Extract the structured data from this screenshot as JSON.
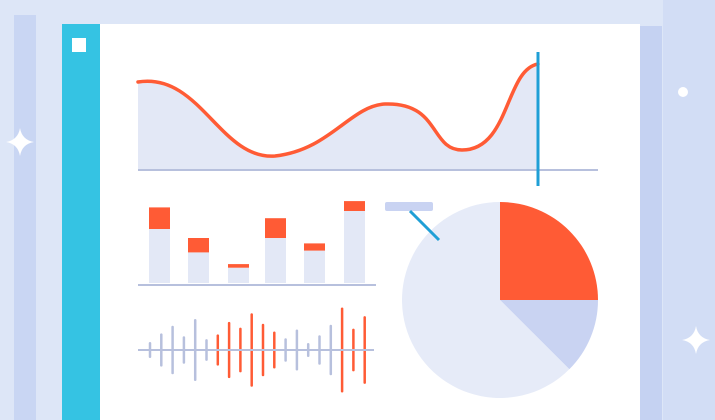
{
  "illustration": {
    "kind": "dashboard-illustration",
    "colors": {
      "background": "#dde6f7",
      "panel": "#ffffff",
      "panel_shadow": "#c5d2f2",
      "sidebar": "#35c3e3",
      "chart_fill": "#e3e8f6",
      "accent": "#ff5b35",
      "cursor": "#1f9fd6",
      "line_gray": "#b7c0dd",
      "pie_light": "#e6ebf8",
      "pie_mid": "#c9d3f2"
    },
    "icons": [
      "window-control-icon",
      "sparkle-icon"
    ],
    "wave_chart": {
      "type": "line",
      "has_cursor": true
    },
    "stacked_bars": [
      {
        "base": 0.6,
        "cap": 0.24
      },
      {
        "base": 0.34,
        "cap": 0.16
      },
      {
        "base": 0.17,
        "cap": 0.04
      },
      {
        "base": 0.5,
        "cap": 0.22
      },
      {
        "base": 0.36,
        "cap": 0.08
      },
      {
        "base": 0.8,
        "cap": 0.11
      }
    ],
    "pie_slices": [
      {
        "fraction": 0.25,
        "color": "accent"
      },
      {
        "fraction": 0.125,
        "color": "pie_mid"
      },
      {
        "fraction": 0.625,
        "color": "pie_light"
      }
    ],
    "waveform": [
      {
        "h": 0.14,
        "accent": false
      },
      {
        "h": 0.32,
        "accent": false
      },
      {
        "h": 0.48,
        "accent": false
      },
      {
        "h": 0.26,
        "accent": false
      },
      {
        "h": 0.62,
        "accent": false
      },
      {
        "h": 0.2,
        "accent": false
      },
      {
        "h": 0.3,
        "accent": true
      },
      {
        "h": 0.56,
        "accent": true
      },
      {
        "h": 0.44,
        "accent": true
      },
      {
        "h": 0.74,
        "accent": true
      },
      {
        "h": 0.52,
        "accent": true
      },
      {
        "h": 0.36,
        "accent": true
      },
      {
        "h": 0.22,
        "accent": false
      },
      {
        "h": 0.4,
        "accent": false
      },
      {
        "h": 0.12,
        "accent": false
      },
      {
        "h": 0.28,
        "accent": false
      },
      {
        "h": 0.5,
        "accent": false
      },
      {
        "h": 0.86,
        "accent": true
      },
      {
        "h": 0.42,
        "accent": true
      },
      {
        "h": 0.68,
        "accent": true
      }
    ]
  }
}
